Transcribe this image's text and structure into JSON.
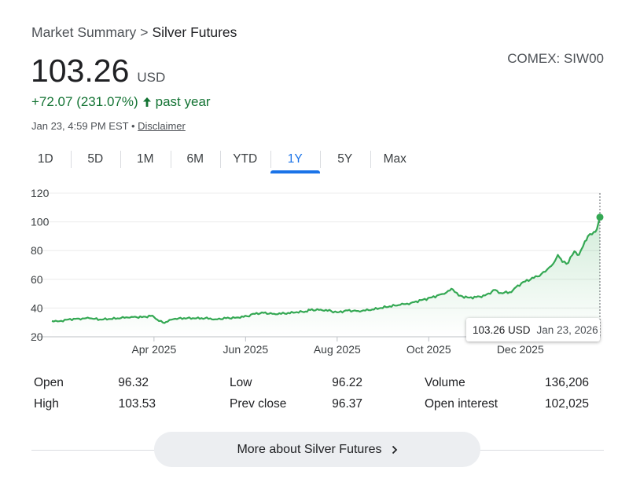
{
  "breadcrumb": {
    "root": "Market Summary",
    "separator": ">",
    "current": "Silver Futures"
  },
  "exchange": "COMEX: SIW00",
  "price": "103.26",
  "currency": "USD",
  "change": {
    "text": "+72.07 (231.07%)",
    "period": "past year",
    "color": "#137333"
  },
  "meta": {
    "timestamp": "Jan 23, 4:59 PM EST",
    "separator": "•",
    "disclaimer": "Disclaimer"
  },
  "tabs": [
    {
      "label": "1D"
    },
    {
      "label": "5D"
    },
    {
      "label": "1M"
    },
    {
      "label": "6M"
    },
    {
      "label": "YTD"
    },
    {
      "label": "1Y",
      "active": true
    },
    {
      "label": "5Y"
    },
    {
      "label": "Max"
    }
  ],
  "tooltip": {
    "price": "103.26 USD",
    "date": "Jan 23, 2026"
  },
  "stats": {
    "open": {
      "label": "Open",
      "value": "96.32"
    },
    "high": {
      "label": "High",
      "value": "103.53"
    },
    "low": {
      "label": "Low",
      "value": "96.22"
    },
    "prev_close": {
      "label": "Prev close",
      "value": "96.37"
    },
    "volume": {
      "label": "Volume",
      "value": "136,206"
    },
    "open_interest": {
      "label": "Open interest",
      "value": "102,025"
    }
  },
  "more_button": "More about Silver Futures",
  "colors": {
    "line": "#34a853",
    "accent": "#1a73e8",
    "positive": "#137333"
  },
  "chart_data": {
    "type": "area",
    "ylim": [
      20,
      120
    ],
    "yticks": [
      20,
      40,
      60,
      80,
      100,
      120
    ],
    "xlim": [
      "2025-01-23",
      "2026-01-23"
    ],
    "xticks": [
      {
        "date": "2025-04-01",
        "label": "Apr 2025"
      },
      {
        "date": "2025-06-01",
        "label": "Jun 2025"
      },
      {
        "date": "2025-08-01",
        "label": "Aug 2025"
      },
      {
        "date": "2025-10-01",
        "label": "Oct 2025"
      },
      {
        "date": "2025-12-01",
        "label": "Dec 2025"
      }
    ],
    "grid": true,
    "series": [
      {
        "points": [
          [
            "2025-01-23",
            31.0
          ],
          [
            "2025-01-28",
            30.8
          ],
          [
            "2025-02-03",
            32.1
          ],
          [
            "2025-02-10",
            32.6
          ],
          [
            "2025-02-17",
            32.9
          ],
          [
            "2025-02-24",
            32.0
          ],
          [
            "2025-03-03",
            32.4
          ],
          [
            "2025-03-10",
            33.0
          ],
          [
            "2025-03-17",
            33.9
          ],
          [
            "2025-03-24",
            33.6
          ],
          [
            "2025-03-31",
            34.7
          ],
          [
            "2025-04-03",
            32.0
          ],
          [
            "2025-04-07",
            29.8
          ],
          [
            "2025-04-10",
            30.5
          ],
          [
            "2025-04-14",
            32.3
          ],
          [
            "2025-04-21",
            33.0
          ],
          [
            "2025-04-28",
            32.8
          ],
          [
            "2025-05-05",
            32.9
          ],
          [
            "2025-05-12",
            32.2
          ],
          [
            "2025-05-19",
            32.9
          ],
          [
            "2025-05-26",
            33.4
          ],
          [
            "2025-06-02",
            34.3
          ],
          [
            "2025-06-06",
            36.0
          ],
          [
            "2025-06-13",
            36.6
          ],
          [
            "2025-06-20",
            36.0
          ],
          [
            "2025-06-27",
            36.2
          ],
          [
            "2025-07-04",
            36.9
          ],
          [
            "2025-07-11",
            37.6
          ],
          [
            "2025-07-14",
            38.6
          ],
          [
            "2025-07-21",
            38.9
          ],
          [
            "2025-07-28",
            37.9
          ],
          [
            "2025-08-01",
            37.0
          ],
          [
            "2025-08-08",
            38.3
          ],
          [
            "2025-08-15",
            38.0
          ],
          [
            "2025-08-22",
            38.5
          ],
          [
            "2025-08-29",
            39.8
          ],
          [
            "2025-09-05",
            41.2
          ],
          [
            "2025-09-12",
            42.2
          ],
          [
            "2025-09-19",
            43.5
          ],
          [
            "2025-09-26",
            45.5
          ],
          [
            "2025-10-03",
            47.4
          ],
          [
            "2025-10-10",
            49.8
          ],
          [
            "2025-10-14",
            52.0
          ],
          [
            "2025-10-17",
            53.0
          ],
          [
            "2025-10-21",
            48.6
          ],
          [
            "2025-10-28",
            47.2
          ],
          [
            "2025-11-04",
            48.0
          ],
          [
            "2025-11-11",
            49.9
          ],
          [
            "2025-11-13",
            52.5
          ],
          [
            "2025-11-18",
            50.5
          ],
          [
            "2025-11-25",
            51.0
          ],
          [
            "2025-11-28",
            54.5
          ],
          [
            "2025-12-03",
            58.2
          ],
          [
            "2025-12-10",
            61.0
          ],
          [
            "2025-12-15",
            63.7
          ],
          [
            "2025-12-19",
            67.0
          ],
          [
            "2025-12-23",
            71.0
          ],
          [
            "2025-12-26",
            77.0
          ],
          [
            "2025-12-29",
            72.0
          ],
          [
            "2026-01-02",
            71.5
          ],
          [
            "2026-01-06",
            79.5
          ],
          [
            "2026-01-09",
            77.0
          ],
          [
            "2026-01-13",
            86.5
          ],
          [
            "2026-01-15",
            90.0
          ],
          [
            "2026-01-19",
            93.0
          ],
          [
            "2026-01-21",
            95.0
          ],
          [
            "2026-01-23",
            103.26
          ]
        ]
      }
    ]
  }
}
